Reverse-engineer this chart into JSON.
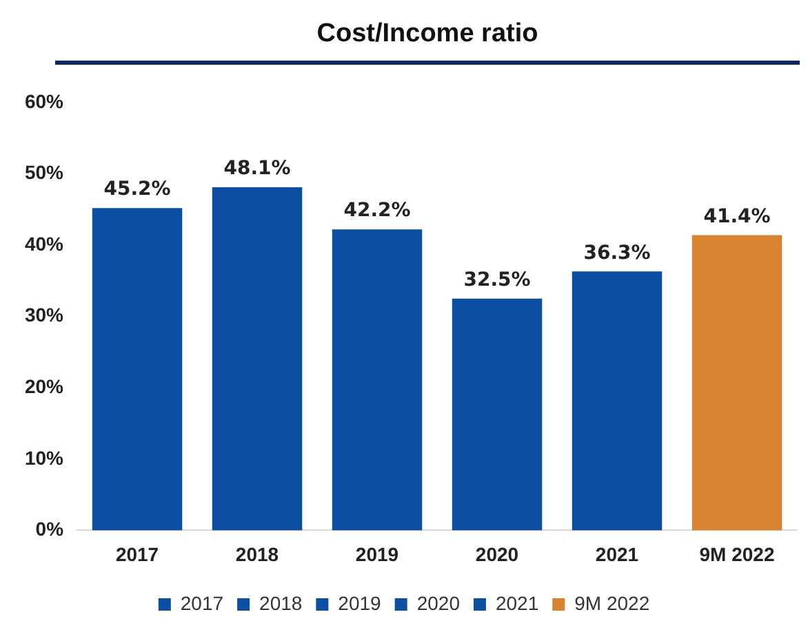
{
  "chart_data": {
    "type": "bar",
    "title": "Cost/Income ratio",
    "categories": [
      "2017",
      "2018",
      "2019",
      "2020",
      "2021",
      "9M 2022"
    ],
    "series": [
      {
        "name": "2017",
        "color": "#0b4ea2",
        "values": [
          45.2,
          null,
          null,
          null,
          null,
          null
        ],
        "value_labels": [
          "45.2%",
          null,
          null,
          null,
          null,
          null
        ]
      },
      {
        "name": "2018",
        "color": "#0b4ea2",
        "values": [
          null,
          48.1,
          null,
          null,
          null,
          null
        ],
        "value_labels": [
          null,
          "48.1%",
          null,
          null,
          null,
          null
        ]
      },
      {
        "name": "2019",
        "color": "#0b4ea2",
        "values": [
          null,
          null,
          42.2,
          null,
          null,
          null
        ],
        "value_labels": [
          null,
          null,
          "42.2%",
          null,
          null,
          null
        ]
      },
      {
        "name": "2020",
        "color": "#0b4ea2",
        "values": [
          null,
          null,
          null,
          32.5,
          null,
          null
        ],
        "value_labels": [
          null,
          null,
          null,
          "32.5%",
          null,
          null
        ]
      },
      {
        "name": "2021",
        "color": "#0b4ea2",
        "values": [
          null,
          null,
          null,
          null,
          36.3,
          null
        ],
        "value_labels": [
          null,
          null,
          null,
          null,
          "36.3%",
          null
        ]
      },
      {
        "name": "9M 2022",
        "color": "#d7832f",
        "values": [
          null,
          null,
          null,
          null,
          null,
          41.4
        ],
        "value_labels": [
          null,
          null,
          null,
          null,
          null,
          "41.4%"
        ]
      }
    ],
    "ylim": [
      0,
      60
    ],
    "yticks": [
      {
        "value": 0,
        "label": "0%"
      },
      {
        "value": 10,
        "label": "10%"
      },
      {
        "value": 20,
        "label": "20%"
      },
      {
        "value": 30,
        "label": "30%"
      },
      {
        "value": 40,
        "label": "40%"
      },
      {
        "value": 50,
        "label": "50%"
      },
      {
        "value": 60,
        "label": "60%"
      }
    ],
    "grid": false,
    "legend": "bottom"
  }
}
